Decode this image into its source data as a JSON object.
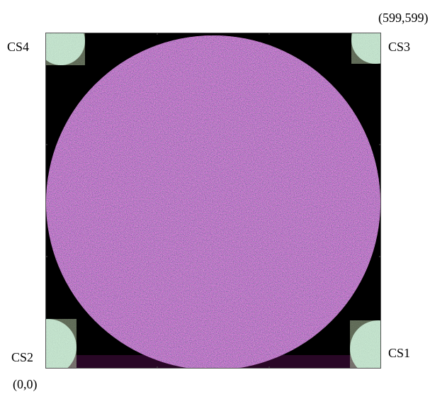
{
  "labels": {
    "top_right_coord": "(599,599)",
    "bottom_left_coord": "(0,0)",
    "cs1": "CS1",
    "cs2": "CS2",
    "cs3": "CS3",
    "cs4": "CS4"
  },
  "colors": {
    "background": "#000000",
    "disk_base": "#9b2a84",
    "disk_speckle_light": "#e07a6a",
    "disk_speckle_dark": "#5a0f52",
    "cs_patch": "#bfe7e4",
    "frame": "#555555"
  }
}
